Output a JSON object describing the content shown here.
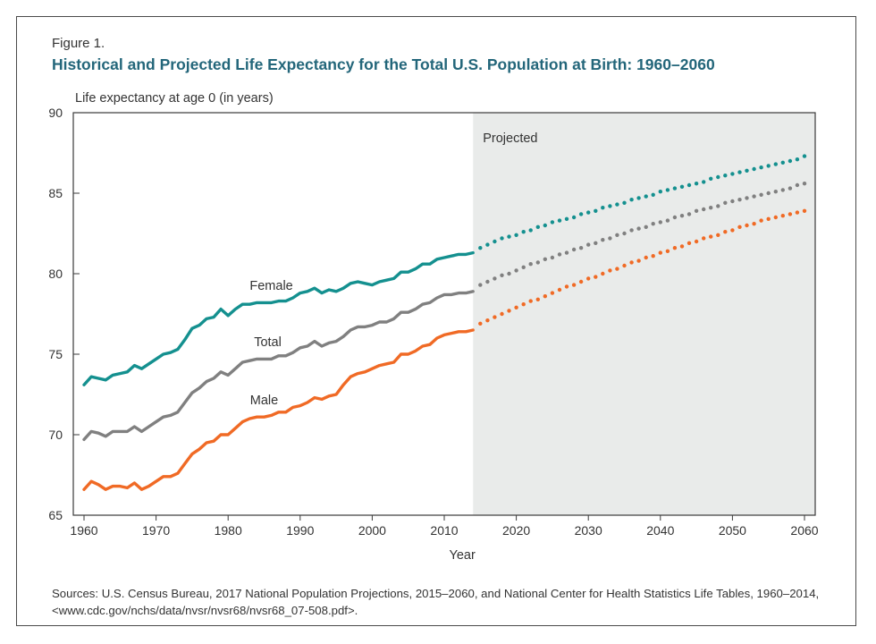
{
  "figure_label": "Figure 1.",
  "sources_text": "Sources: U.S. Census Bureau, 2017 National Population Projections, 2015–2060, and National Center for Health Statistics Life Tables, 1960–2014, <www.cdc.gov/nchs/data/nvsr/nvsr68/nvsr68_07-508.pdf>.",
  "colors": {
    "female": "#14908f",
    "total": "#808080",
    "male": "#f06a25",
    "projected_bg": "#e9ebea",
    "title": "#23667a"
  },
  "chart_data": {
    "type": "line",
    "title": "Historical and Projected Life Expectancy for the Total U.S. Population at Birth: 1960–2060",
    "ylabel": "Life expectancy at age 0  (in years)",
    "xlabel": "Year",
    "xlim": [
      1960,
      2060
    ],
    "ylim": [
      65,
      90
    ],
    "x_ticks": [
      1960,
      1970,
      1980,
      1990,
      2000,
      2010,
      2020,
      2030,
      2040,
      2050,
      2060
    ],
    "y_ticks": [
      65,
      70,
      75,
      80,
      85,
      90
    ],
    "projection_start": 2014,
    "projection_label": "Projected",
    "grid": false,
    "legend": "inline-labels",
    "series": [
      {
        "name": "Female",
        "key": "female",
        "historical": {
          "x": [
            1960,
            1961,
            1962,
            1963,
            1964,
            1965,
            1966,
            1967,
            1968,
            1969,
            1970,
            1971,
            1972,
            1973,
            1974,
            1975,
            1976,
            1977,
            1978,
            1979,
            1980,
            1981,
            1982,
            1983,
            1984,
            1985,
            1986,
            1987,
            1988,
            1989,
            1990,
            1991,
            1992,
            1993,
            1994,
            1995,
            1996,
            1997,
            1998,
            1999,
            2000,
            2001,
            2002,
            2003,
            2004,
            2005,
            2006,
            2007,
            2008,
            2009,
            2010,
            2011,
            2012,
            2013,
            2014
          ],
          "y": [
            73.1,
            73.6,
            73.5,
            73.4,
            73.7,
            73.8,
            73.9,
            74.3,
            74.1,
            74.4,
            74.7,
            75.0,
            75.1,
            75.3,
            75.9,
            76.6,
            76.8,
            77.2,
            77.3,
            77.8,
            77.4,
            77.8,
            78.1,
            78.1,
            78.2,
            78.2,
            78.2,
            78.3,
            78.3,
            78.5,
            78.8,
            78.9,
            79.1,
            78.8,
            79.0,
            78.9,
            79.1,
            79.4,
            79.5,
            79.4,
            79.3,
            79.5,
            79.6,
            79.7,
            80.1,
            80.1,
            80.3,
            80.6,
            80.6,
            80.9,
            81.0,
            81.1,
            81.2,
            81.2,
            81.3
          ]
        },
        "projected": {
          "x": [
            2015,
            2016,
            2017,
            2018,
            2019,
            2020,
            2021,
            2022,
            2023,
            2024,
            2025,
            2026,
            2027,
            2028,
            2029,
            2030,
            2031,
            2032,
            2033,
            2034,
            2035,
            2036,
            2037,
            2038,
            2039,
            2040,
            2041,
            2042,
            2043,
            2044,
            2045,
            2046,
            2047,
            2048,
            2049,
            2050,
            2051,
            2052,
            2053,
            2054,
            2055,
            2056,
            2057,
            2058,
            2059,
            2060
          ],
          "y": [
            81.6,
            81.8,
            82.0,
            82.2,
            82.3,
            82.4,
            82.6,
            82.7,
            82.9,
            83.0,
            83.2,
            83.3,
            83.4,
            83.5,
            83.7,
            83.8,
            83.9,
            84.1,
            84.2,
            84.3,
            84.4,
            84.6,
            84.7,
            84.8,
            84.9,
            85.1,
            85.2,
            85.3,
            85.4,
            85.5,
            85.6,
            85.7,
            85.9,
            86.0,
            86.1,
            86.2,
            86.3,
            86.4,
            86.5,
            86.6,
            86.7,
            86.8,
            86.9,
            87.0,
            87.1,
            87.3
          ]
        }
      },
      {
        "name": "Total",
        "key": "total",
        "historical": {
          "x": [
            1960,
            1961,
            1962,
            1963,
            1964,
            1965,
            1966,
            1967,
            1968,
            1969,
            1970,
            1971,
            1972,
            1973,
            1974,
            1975,
            1976,
            1977,
            1978,
            1979,
            1980,
            1981,
            1982,
            1983,
            1984,
            1985,
            1986,
            1987,
            1988,
            1989,
            1990,
            1991,
            1992,
            1993,
            1994,
            1995,
            1996,
            1997,
            1998,
            1999,
            2000,
            2001,
            2002,
            2003,
            2004,
            2005,
            2006,
            2007,
            2008,
            2009,
            2010,
            2011,
            2012,
            2013,
            2014
          ],
          "y": [
            69.7,
            70.2,
            70.1,
            69.9,
            70.2,
            70.2,
            70.2,
            70.5,
            70.2,
            70.5,
            70.8,
            71.1,
            71.2,
            71.4,
            72.0,
            72.6,
            72.9,
            73.3,
            73.5,
            73.9,
            73.7,
            74.1,
            74.5,
            74.6,
            74.7,
            74.7,
            74.7,
            74.9,
            74.9,
            75.1,
            75.4,
            75.5,
            75.8,
            75.5,
            75.7,
            75.8,
            76.1,
            76.5,
            76.7,
            76.7,
            76.8,
            77.0,
            77.0,
            77.2,
            77.6,
            77.6,
            77.8,
            78.1,
            78.2,
            78.5,
            78.7,
            78.7,
            78.8,
            78.8,
            78.9
          ]
        },
        "projected": {
          "x": [
            2015,
            2016,
            2017,
            2018,
            2019,
            2020,
            2021,
            2022,
            2023,
            2024,
            2025,
            2026,
            2027,
            2028,
            2029,
            2030,
            2031,
            2032,
            2033,
            2034,
            2035,
            2036,
            2037,
            2038,
            2039,
            2040,
            2041,
            2042,
            2043,
            2044,
            2045,
            2046,
            2047,
            2048,
            2049,
            2050,
            2051,
            2052,
            2053,
            2054,
            2055,
            2056,
            2057,
            2058,
            2059,
            2060
          ],
          "y": [
            79.3,
            79.5,
            79.7,
            79.9,
            80.0,
            80.2,
            80.4,
            80.6,
            80.7,
            80.9,
            81.0,
            81.2,
            81.3,
            81.5,
            81.6,
            81.8,
            81.9,
            82.1,
            82.2,
            82.4,
            82.5,
            82.7,
            82.8,
            82.9,
            83.1,
            83.2,
            83.3,
            83.5,
            83.6,
            83.7,
            83.9,
            84.0,
            84.1,
            84.2,
            84.4,
            84.5,
            84.6,
            84.7,
            84.8,
            84.9,
            85.0,
            85.1,
            85.2,
            85.3,
            85.5,
            85.6
          ]
        }
      },
      {
        "name": "Male",
        "key": "male",
        "historical": {
          "x": [
            1960,
            1961,
            1962,
            1963,
            1964,
            1965,
            1966,
            1967,
            1968,
            1969,
            1970,
            1971,
            1972,
            1973,
            1974,
            1975,
            1976,
            1977,
            1978,
            1979,
            1980,
            1981,
            1982,
            1983,
            1984,
            1985,
            1986,
            1987,
            1988,
            1989,
            1990,
            1991,
            1992,
            1993,
            1994,
            1995,
            1996,
            1997,
            1998,
            1999,
            2000,
            2001,
            2002,
            2003,
            2004,
            2005,
            2006,
            2007,
            2008,
            2009,
            2010,
            2011,
            2012,
            2013,
            2014
          ],
          "y": [
            66.6,
            67.1,
            66.9,
            66.6,
            66.8,
            66.8,
            66.7,
            67.0,
            66.6,
            66.8,
            67.1,
            67.4,
            67.4,
            67.6,
            68.2,
            68.8,
            69.1,
            69.5,
            69.6,
            70.0,
            70.0,
            70.4,
            70.8,
            71.0,
            71.1,
            71.1,
            71.2,
            71.4,
            71.4,
            71.7,
            71.8,
            72.0,
            72.3,
            72.2,
            72.4,
            72.5,
            73.1,
            73.6,
            73.8,
            73.9,
            74.1,
            74.3,
            74.4,
            74.5,
            75.0,
            75.0,
            75.2,
            75.5,
            75.6,
            76.0,
            76.2,
            76.3,
            76.4,
            76.4,
            76.5
          ]
        },
        "projected": {
          "x": [
            2015,
            2016,
            2017,
            2018,
            2019,
            2020,
            2021,
            2022,
            2023,
            2024,
            2025,
            2026,
            2027,
            2028,
            2029,
            2030,
            2031,
            2032,
            2033,
            2034,
            2035,
            2036,
            2037,
            2038,
            2039,
            2040,
            2041,
            2042,
            2043,
            2044,
            2045,
            2046,
            2047,
            2048,
            2049,
            2050,
            2051,
            2052,
            2053,
            2054,
            2055,
            2056,
            2057,
            2058,
            2059,
            2060
          ],
          "y": [
            76.9,
            77.1,
            77.3,
            77.5,
            77.7,
            77.9,
            78.1,
            78.3,
            78.4,
            78.6,
            78.8,
            79.0,
            79.2,
            79.3,
            79.5,
            79.7,
            79.8,
            80.0,
            80.2,
            80.3,
            80.5,
            80.7,
            80.8,
            81.0,
            81.1,
            81.3,
            81.4,
            81.6,
            81.7,
            81.9,
            82.0,
            82.2,
            82.3,
            82.4,
            82.6,
            82.7,
            82.9,
            83.0,
            83.1,
            83.3,
            83.4,
            83.5,
            83.6,
            83.7,
            83.8,
            83.9
          ]
        }
      }
    ],
    "series_label_positions": [
      {
        "key": "female",
        "x": 1986,
        "y": 79.0
      },
      {
        "key": "total",
        "x": 1985.5,
        "y": 75.5
      },
      {
        "key": "male",
        "x": 1985,
        "y": 71.9
      }
    ]
  }
}
